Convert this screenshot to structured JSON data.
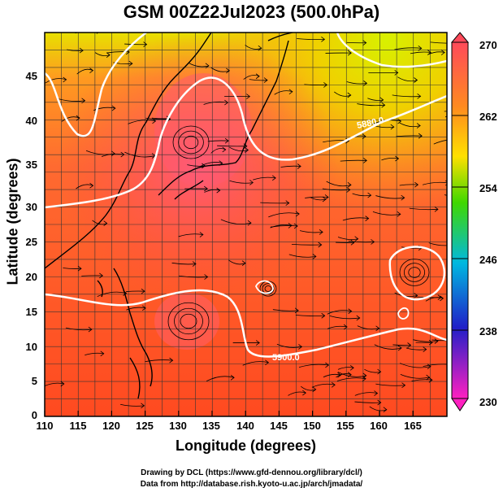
{
  "title": "GSM 00Z22Jul2023 (500.0hPa)",
  "axes": {
    "xlabel": "Longitude (degrees)",
    "ylabel": "Latitude  (degrees)",
    "x_ticks": [
      "110",
      "115",
      "120",
      "125",
      "130",
      "135",
      "140",
      "145",
      "150",
      "155",
      "160",
      "165"
    ],
    "y_ticks": [
      "0",
      "5",
      "10",
      "15",
      "20",
      "25",
      "30",
      "35",
      "40",
      "45"
    ],
    "lon_range": [
      110,
      170
    ],
    "lat_range": [
      0,
      50
    ]
  },
  "colorbar": {
    "labels": [
      "270",
      "262",
      "254",
      "246",
      "238",
      "230"
    ],
    "unit_range": [
      230,
      270
    ],
    "colors": [
      "#ff4a5a",
      "#ff8a20",
      "#ffe000",
      "#40d800",
      "#00b8e0",
      "#2020c8",
      "#ff20c0"
    ]
  },
  "contours": [
    {
      "label": "5880.0"
    },
    {
      "label": "5900.0"
    }
  ],
  "credits": {
    "line1": "Drawing by DCL (https://www.gfd-dennou.org/library/dcl/)",
    "line2": "Data from http://database.rish.kyoto-u.ac.jp/arch/jmadata/"
  }
}
